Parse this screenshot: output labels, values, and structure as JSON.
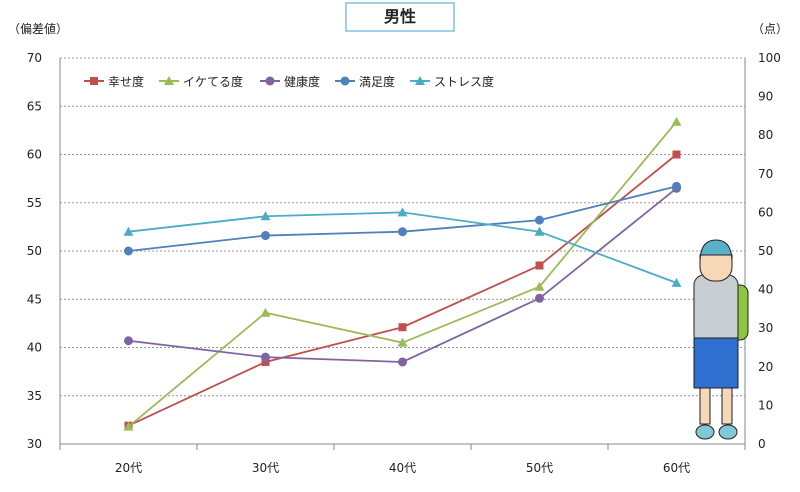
{
  "chart_data": {
    "type": "line",
    "title": "男性",
    "ylabel": "（偏差値）",
    "y2label": "（点）",
    "categories": [
      "20代",
      "30代",
      "40代",
      "50代",
      "60代"
    ],
    "ylim": [
      30,
      70
    ],
    "yticks": [
      30,
      35,
      40,
      45,
      50,
      55,
      60,
      65,
      70
    ],
    "y2lim": [
      0,
      100
    ],
    "y2ticks": [
      0,
      10,
      20,
      30,
      40,
      50,
      60,
      70,
      80,
      90,
      100
    ],
    "legend_position": "top-left",
    "grid": true,
    "series": [
      {
        "name": "幸せ度",
        "color": "#c0504d",
        "marker": "square",
        "values": [
          31.9,
          38.5,
          42.1,
          48.5,
          60.0
        ]
      },
      {
        "name": "イケてる度",
        "color": "#9bbb59",
        "marker": "triangle",
        "values": [
          31.8,
          43.6,
          40.5,
          46.3,
          63.4
        ]
      },
      {
        "name": "健康度",
        "color": "#8064a2",
        "marker": "circle",
        "values": [
          40.7,
          39.0,
          38.5,
          45.1,
          56.5
        ]
      },
      {
        "name": "満足度",
        "color": "#4f81bd",
        "marker": "circle",
        "values": [
          50.0,
          51.6,
          52.0,
          53.2,
          56.7
        ]
      },
      {
        "name": "ストレス度",
        "color": "#4bacc6",
        "marker": "triangle",
        "values": [
          52.0,
          53.6,
          54.0,
          52.0,
          46.7
        ]
      }
    ]
  }
}
